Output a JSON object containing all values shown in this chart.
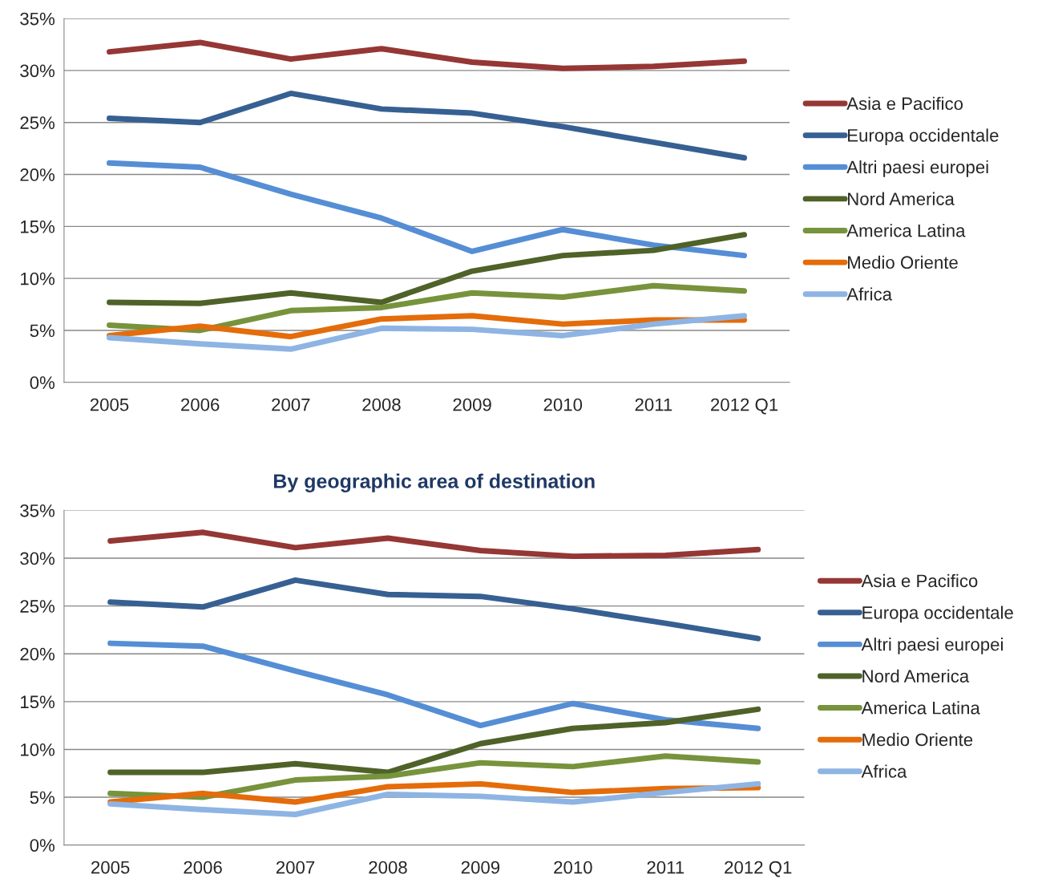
{
  "chart_data": [
    {
      "type": "line",
      "categories": [
        "2005",
        "2006",
        "2007",
        "2008",
        "2009",
        "2010",
        "2011",
        "2012 Q1"
      ],
      "ylim": [
        0,
        35
      ],
      "yticks": [
        {
          "value": 0,
          "label": "0%"
        },
        {
          "value": 5,
          "label": "5%"
        },
        {
          "value": 10,
          "label": "10%"
        },
        {
          "value": 15,
          "label": "15%"
        },
        {
          "value": 20,
          "label": "20%"
        },
        {
          "value": 25,
          "label": "25%"
        },
        {
          "value": 30,
          "label": "30%"
        },
        {
          "value": 35,
          "label": "35%"
        }
      ],
      "grid": "y",
      "legend": "right",
      "marker": "none",
      "line_style": "solid",
      "series": [
        {
          "name": "Asia e Pacifico",
          "color": "#953735",
          "values": [
            31.8,
            32.7,
            31.1,
            32.1,
            30.8,
            30.2,
            30.4,
            30.9
          ]
        },
        {
          "name": "Europa occidentale",
          "color": "#376092",
          "values": [
            25.4,
            25.0,
            27.8,
            26.3,
            25.9,
            24.6,
            23.1,
            21.6
          ]
        },
        {
          "name": "Altri paesi europei",
          "color": "#558ed5",
          "values": [
            21.1,
            20.7,
            18.1,
            15.8,
            12.6,
            14.7,
            13.2,
            12.2
          ]
        },
        {
          "name": "Nord America",
          "color": "#4f6228",
          "values": [
            7.7,
            7.6,
            8.6,
            7.7,
            10.7,
            12.2,
            12.7,
            14.2
          ]
        },
        {
          "name": "America Latina",
          "color": "#77933c",
          "values": [
            5.5,
            5.0,
            6.9,
            7.2,
            8.6,
            8.2,
            9.3,
            8.8
          ]
        },
        {
          "name": "Medio Oriente",
          "color": "#e46c0a",
          "values": [
            4.5,
            5.4,
            4.4,
            6.1,
            6.4,
            5.6,
            6.0,
            6.0
          ]
        },
        {
          "name": "Africa",
          "color": "#8eb4e3",
          "values": [
            4.3,
            3.7,
            3.2,
            5.2,
            5.1,
            4.5,
            5.6,
            6.4
          ]
        }
      ]
    },
    {
      "type": "line",
      "title": "By geographic area of destination",
      "categories": [
        "2005",
        "2006",
        "2007",
        "2008",
        "2009",
        "2010",
        "2011",
        "2012 Q1"
      ],
      "ylim": [
        0,
        35
      ],
      "yticks": [
        {
          "value": 0,
          "label": "0%"
        },
        {
          "value": 5,
          "label": "5%"
        },
        {
          "value": 10,
          "label": "10%"
        },
        {
          "value": 15,
          "label": "15%"
        },
        {
          "value": 20,
          "label": "20%"
        },
        {
          "value": 25,
          "label": "25%"
        },
        {
          "value": 30,
          "label": "30%"
        },
        {
          "value": 35,
          "label": "35%"
        }
      ],
      "grid": "y",
      "legend": "right",
      "marker": "none",
      "line_style": "solid",
      "series": [
        {
          "name": "Asia e Pacifico",
          "color": "#953735",
          "values": [
            31.8,
            32.7,
            31.1,
            32.1,
            30.8,
            30.2,
            30.3,
            30.9
          ]
        },
        {
          "name": "Europa occidentale",
          "color": "#376092",
          "values": [
            25.4,
            24.9,
            27.7,
            26.2,
            26.0,
            24.7,
            23.2,
            21.6
          ]
        },
        {
          "name": "Altri paesi europei",
          "color": "#558ed5",
          "values": [
            21.1,
            20.8,
            18.2,
            15.7,
            12.5,
            14.8,
            13.1,
            12.2
          ]
        },
        {
          "name": "Nord America",
          "color": "#4f6228",
          "values": [
            7.6,
            7.6,
            8.5,
            7.6,
            10.6,
            12.2,
            12.8,
            14.2
          ]
        },
        {
          "name": "America Latina",
          "color": "#77933c",
          "values": [
            5.4,
            5.0,
            6.8,
            7.2,
            8.6,
            8.2,
            9.3,
            8.7
          ]
        },
        {
          "name": "Medio Oriente",
          "color": "#e46c0a",
          "values": [
            4.5,
            5.4,
            4.5,
            6.1,
            6.4,
            5.5,
            5.9,
            6.0
          ]
        },
        {
          "name": "Africa",
          "color": "#8eb4e3",
          "values": [
            4.3,
            3.7,
            3.2,
            5.3,
            5.1,
            4.5,
            5.5,
            6.4
          ]
        }
      ]
    }
  ]
}
